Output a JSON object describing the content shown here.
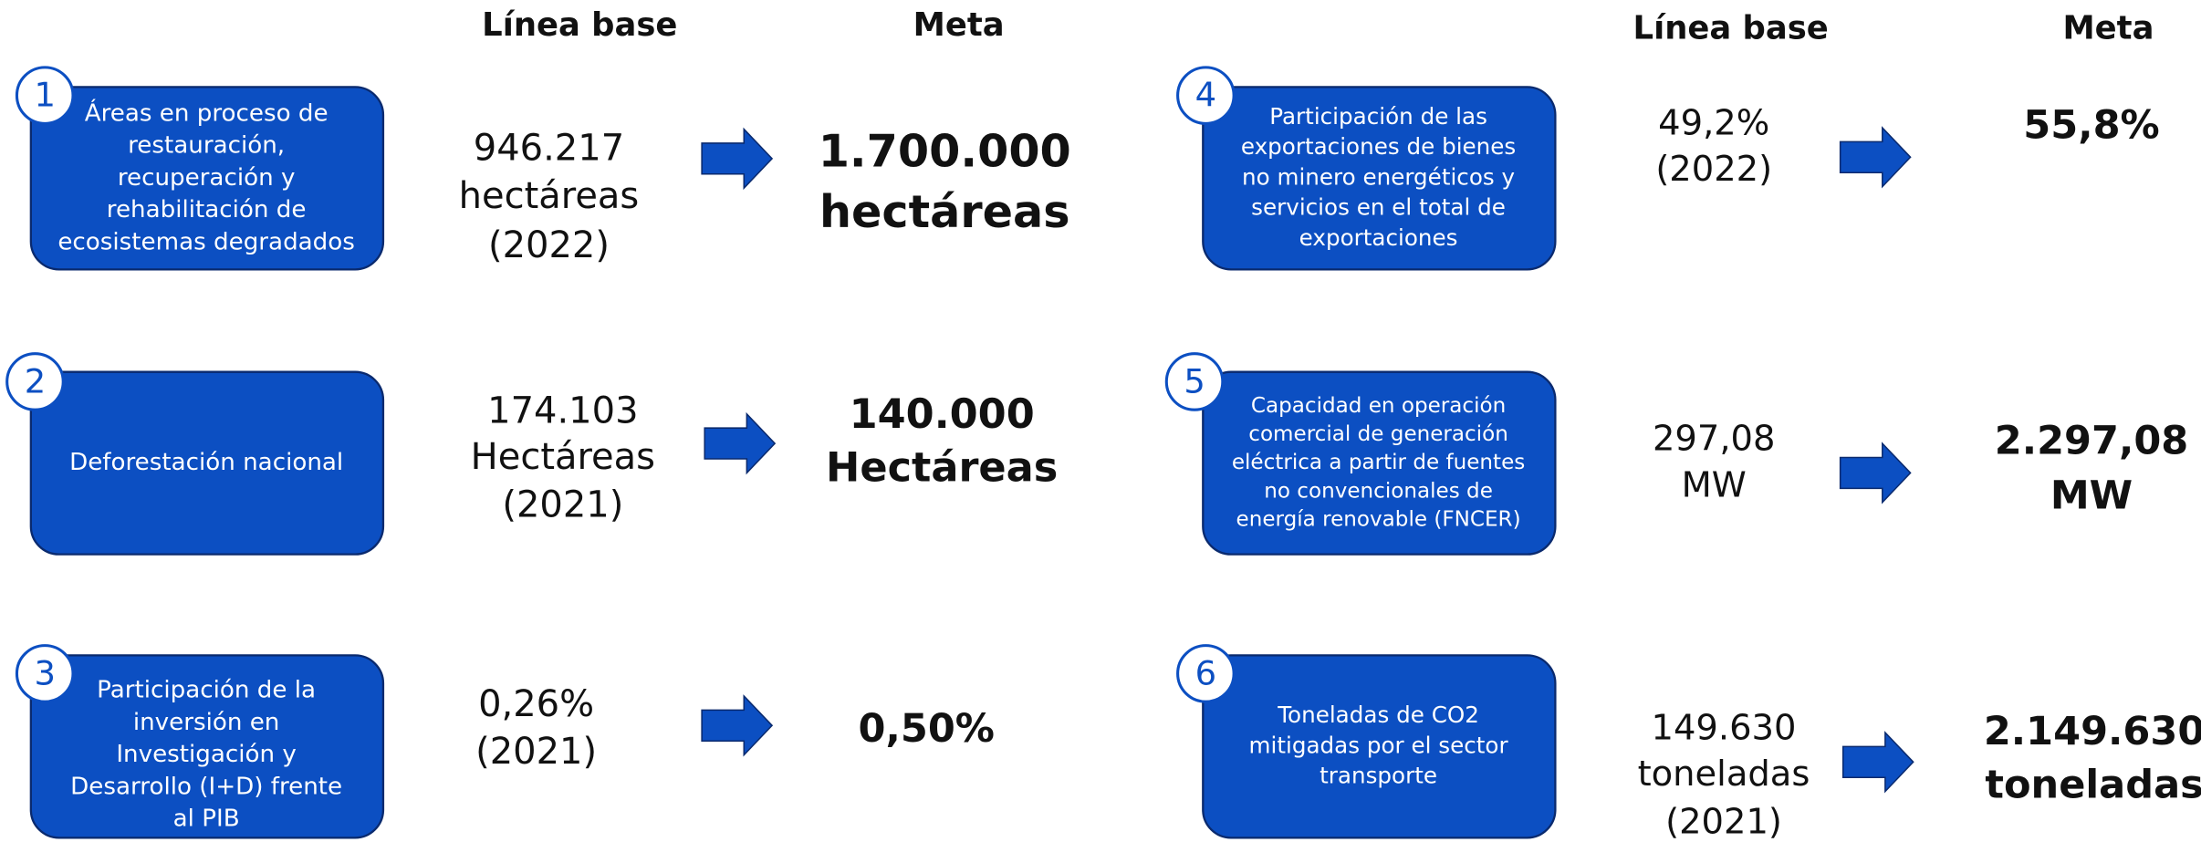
{
  "headers": {
    "left": {
      "baseline": "Línea base",
      "goal": "Meta"
    },
    "right": {
      "baseline": "Línea base",
      "goal": "Meta"
    }
  },
  "items": [
    {
      "number": "1",
      "label": [
        "Áreas en proceso de",
        "restauración,",
        "recuperación y",
        "rehabilitación de",
        "ecosistemas degradados"
      ],
      "baseline": [
        "946.217",
        "hectáreas",
        "(2022)"
      ],
      "goal": [
        "1.700.000",
        "hectáreas"
      ]
    },
    {
      "number": "2",
      "label": [
        "Deforestación nacional"
      ],
      "baseline": [
        "174.103",
        "Hectáreas",
        "(2021)"
      ],
      "goal": [
        "140.000",
        "Hectáreas"
      ]
    },
    {
      "number": "3",
      "label": [
        "Participación de la",
        "inversión en",
        "Investigación y",
        "Desarrollo (I+D) frente",
        "al PIB"
      ],
      "baseline": [
        "0,26%",
        "(2021)"
      ],
      "goal": [
        "0,50%"
      ]
    },
    {
      "number": "4",
      "label": [
        "Participación de las",
        "exportaciones de bienes",
        "no minero energéticos y",
        "servicios en el total de",
        "exportaciones"
      ],
      "baseline": [
        "49,2%",
        "(2022)"
      ],
      "goal": [
        "55,8%"
      ]
    },
    {
      "number": "5",
      "label": [
        "Capacidad en operación",
        "comercial de generación",
        "eléctrica a partir de fuentes",
        "no convencionales de",
        "energía renovable (FNCER)"
      ],
      "baseline": [
        "297,08",
        "MW"
      ],
      "goal": [
        "2.297,08",
        "MW"
      ]
    },
    {
      "number": "6",
      "label": [
        "Toneladas de CO2",
        "mitigadas por el sector",
        "transporte"
      ],
      "baseline": [
        "149.630",
        "toneladas",
        "(2021)"
      ],
      "goal": [
        "2.149.630",
        "toneladas"
      ]
    }
  ]
}
